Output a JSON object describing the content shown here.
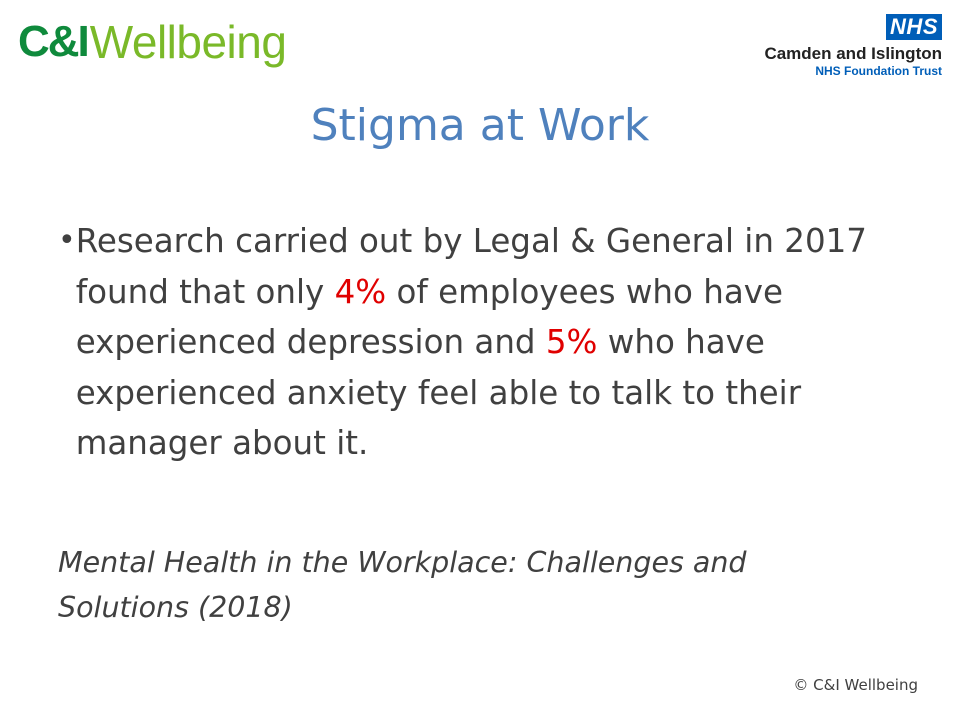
{
  "logos": {
    "left": {
      "mark": "C&I",
      "text": "Wellbeing",
      "colors": {
        "mark": "#0f8a3c",
        "text": "#7ab929"
      }
    },
    "right": {
      "badge": "NHS",
      "org": "Camden and Islington",
      "trust": "NHS Foundation Trust",
      "colors": {
        "badge": "#005eb8"
      }
    }
  },
  "slide": {
    "title": "Stigma at Work",
    "bullet": {
      "segments": [
        {
          "text": "Research carried out by Legal & General in 2017 found that only ",
          "highlight": false
        },
        {
          "text": "4%",
          "highlight": true
        },
        {
          "text": " of employees who have experienced depression and ",
          "highlight": false
        },
        {
          "text": "5%",
          "highlight": true
        },
        {
          "text": " who have experienced anxiety feel able to talk to their manager about it.",
          "highlight": false
        }
      ]
    },
    "citation": "Mental Health in the Workplace: Challenges and Solutions (2018)",
    "footer": "© C&I Wellbeing"
  },
  "colors": {
    "title": "#4f81bd",
    "body": "#404040",
    "highlight": "#e00000"
  }
}
